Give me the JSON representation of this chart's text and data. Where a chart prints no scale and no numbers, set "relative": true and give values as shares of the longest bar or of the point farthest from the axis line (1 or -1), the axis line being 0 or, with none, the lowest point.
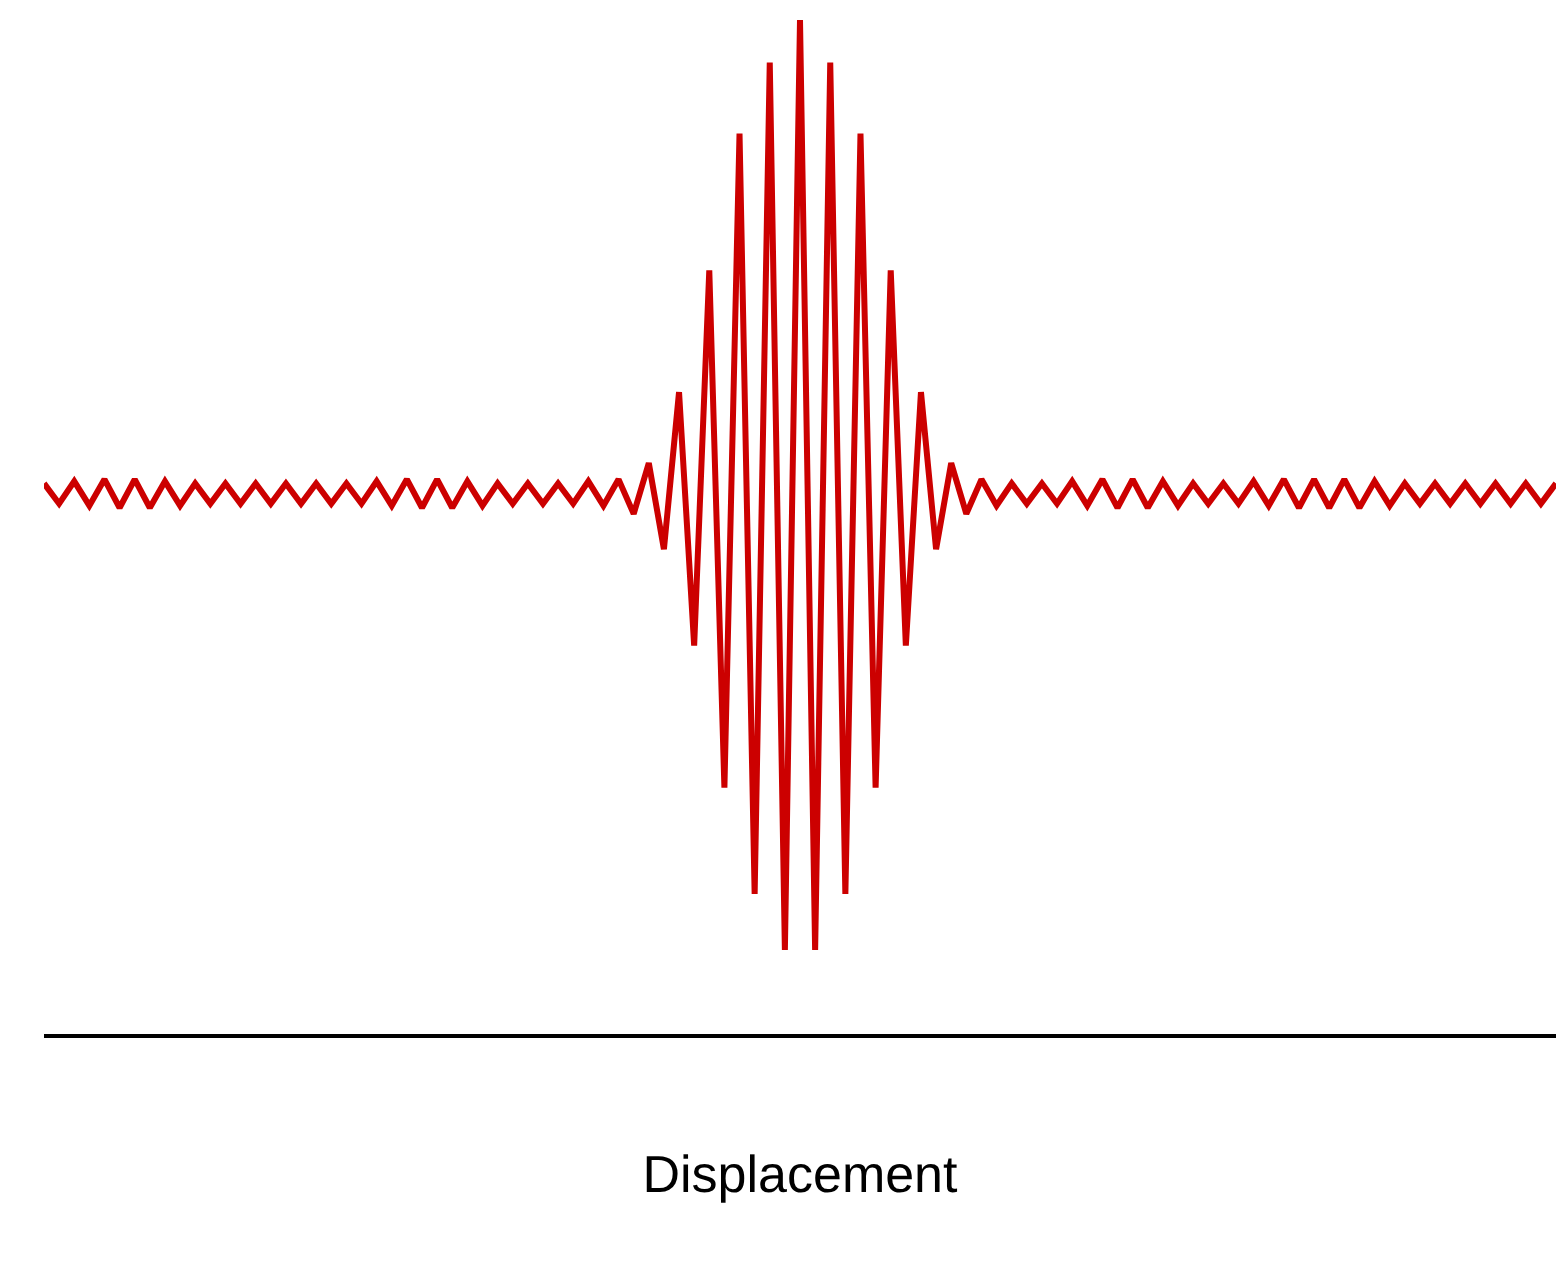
{
  "chart_data": {
    "type": "line",
    "relative": true,
    "xlabel": "Displacement",
    "tick_labels": false,
    "categories": [
      null,
      null,
      null,
      null,
      null,
      null,
      null,
      null,
      null,
      null,
      null,
      null,
      null,
      null,
      null,
      null,
      null,
      null,
      null,
      null,
      null,
      null,
      null,
      null,
      null,
      null,
      null,
      null,
      null,
      null,
      null,
      null,
      null,
      null,
      null,
      null,
      null,
      null,
      null,
      null,
      null,
      null,
      null,
      null,
      null,
      null,
      null,
      null,
      null,
      null,
      null,
      null,
      null,
      null,
      null,
      null,
      null,
      null,
      null,
      null,
      null,
      null,
      null,
      null,
      null,
      null,
      null,
      null,
      null,
      null,
      null,
      null,
      null,
      null,
      null,
      null,
      null,
      null,
      null,
      null,
      null,
      null,
      null,
      null,
      null,
      null,
      null,
      null,
      null,
      null,
      null,
      null,
      null,
      null,
      null,
      null,
      null,
      null,
      null,
      null,
      null
    ],
    "series": [
      {
        "color": "#cc0000",
        "values": [
          0.543,
          0.523,
          0.545,
          0.521,
          0.547,
          0.519,
          0.547,
          0.519,
          0.545,
          0.521,
          0.543,
          0.523,
          0.543,
          0.523,
          0.543,
          0.523,
          0.543,
          0.523,
          0.543,
          0.523,
          0.543,
          0.523,
          0.545,
          0.521,
          0.547,
          0.519,
          0.547,
          0.519,
          0.545,
          0.521,
          0.543,
          0.523,
          0.543,
          0.523,
          0.543,
          0.523,
          0.545,
          0.521,
          0.547,
          0.513,
          0.563,
          0.478,
          0.633,
          0.383,
          0.753,
          0.243,
          0.888,
          0.138,
          0.958,
          0.083,
          1.0,
          0.083,
          0.958,
          0.138,
          0.888,
          0.243,
          0.753,
          0.383,
          0.633,
          0.478,
          0.563,
          0.513,
          0.547,
          0.521,
          0.543,
          0.523,
          0.543,
          0.523,
          0.545,
          0.521,
          0.547,
          0.519,
          0.547,
          0.519,
          0.545,
          0.521,
          0.543,
          0.523,
          0.543,
          0.523,
          0.545,
          0.521,
          0.547,
          0.519,
          0.547,
          0.519,
          0.547,
          0.519,
          0.545,
          0.521,
          0.543,
          0.523,
          0.543,
          0.523,
          0.543,
          0.523,
          0.543,
          0.523,
          0.543,
          0.523,
          0.543
        ]
      }
    ]
  }
}
